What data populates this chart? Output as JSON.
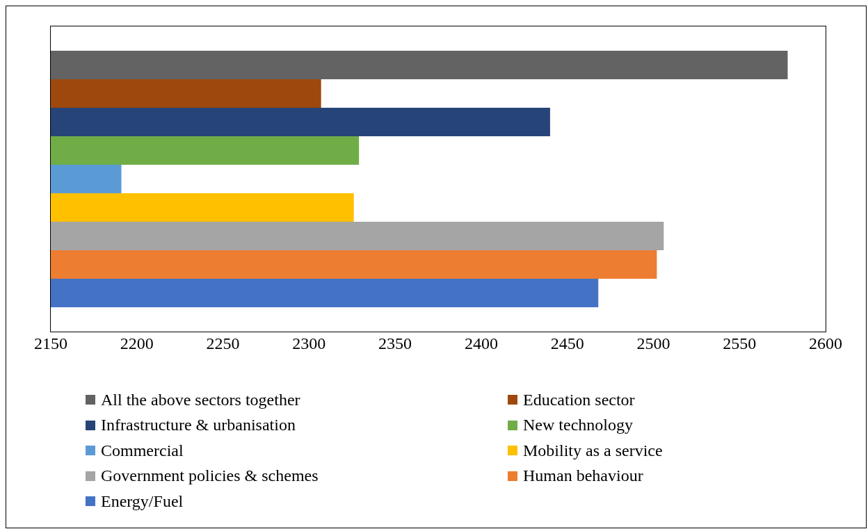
{
  "chart_data": {
    "type": "bar",
    "orientation": "horizontal",
    "categories": [
      null
    ],
    "series": [
      {
        "name": "All the above sectors together",
        "color": "#636363",
        "values": [
          2578
        ]
      },
      {
        "name": "Education sector",
        "color": "#9e480e",
        "values": [
          2307
        ]
      },
      {
        "name": "Infrastructure & urbanisation",
        "color": "#264478",
        "values": [
          2440
        ]
      },
      {
        "name": "New technology",
        "color": "#70ad47",
        "values": [
          2329
        ]
      },
      {
        "name": "Commercial",
        "color": "#5b9bd5",
        "values": [
          2191
        ]
      },
      {
        "name": "Mobility as a service",
        "color": "#ffc000",
        "values": [
          2326
        ]
      },
      {
        "name": "Government policies & schemes",
        "color": "#a5a5a5",
        "values": [
          2506
        ]
      },
      {
        "name": "Human behaviour",
        "color": "#ed7d31",
        "values": [
          2502
        ]
      },
      {
        "name": "Energy/Fuel",
        "color": "#4472c4",
        "values": [
          2468
        ]
      }
    ],
    "xlim": [
      2150,
      2600
    ],
    "xticks": [
      2150,
      2200,
      2250,
      2300,
      2350,
      2400,
      2450,
      2500,
      2550,
      2600
    ],
    "legend": "bottom",
    "grid": false
  }
}
